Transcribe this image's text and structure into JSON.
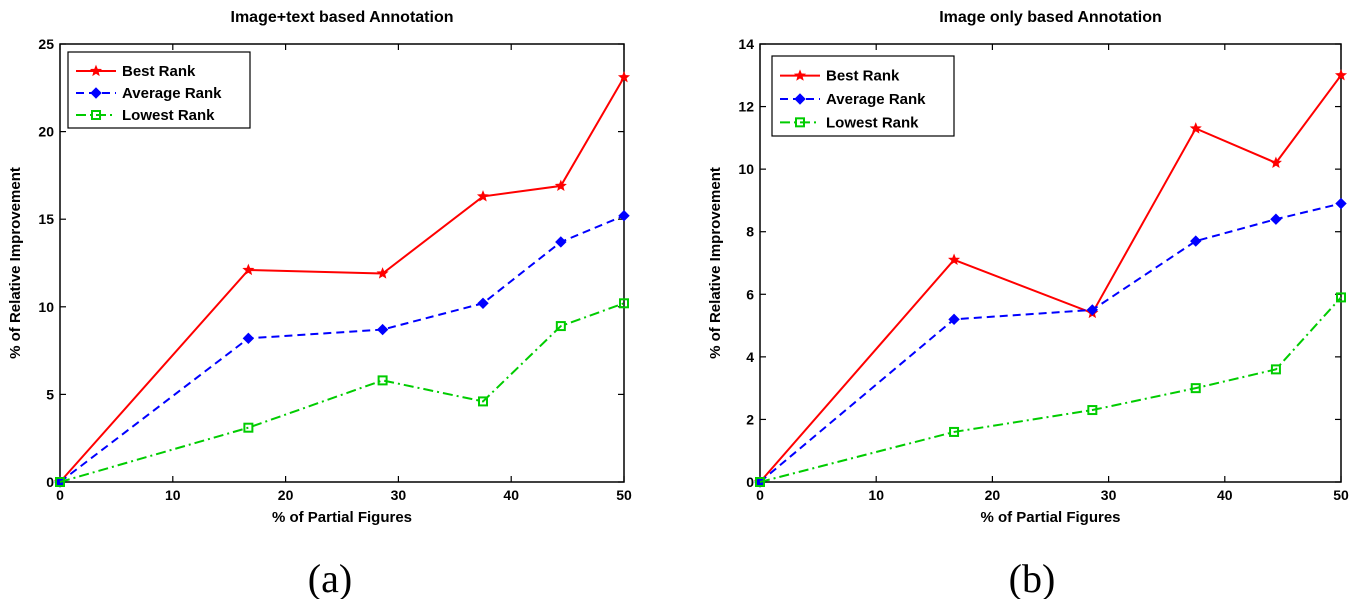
{
  "chart_data": [
    {
      "type": "line",
      "title": "Image+text based Annotation",
      "xlabel": "% of Partial Figures",
      "ylabel": "% of Relative Improvement",
      "caption": "(a)",
      "xlim": [
        0,
        50
      ],
      "ylim": [
        0,
        25
      ],
      "xticks": [
        0,
        10,
        20,
        30,
        40,
        50
      ],
      "yticks": [
        0,
        5,
        10,
        15,
        20,
        25
      ],
      "legend_position": "top-left",
      "grid": false,
      "x": [
        0,
        16.7,
        28.6,
        37.5,
        44.4,
        50
      ],
      "series": [
        {
          "name": "Best Rank",
          "values": [
            0,
            12.1,
            11.9,
            16.3,
            16.9,
            23.1
          ],
          "color": "#ff0000",
          "dash": "solid",
          "marker": "star"
        },
        {
          "name": "Average Rank",
          "values": [
            0,
            8.2,
            8.7,
            10.2,
            13.7,
            15.2
          ],
          "color": "#0000ff",
          "dash": "dashed",
          "marker": "diamond"
        },
        {
          "name": "Lowest Rank",
          "values": [
            0,
            3.1,
            5.8,
            4.6,
            8.9,
            10.2
          ],
          "color": "#00cc00",
          "dash": "dashdot",
          "marker": "square"
        }
      ]
    },
    {
      "type": "line",
      "title": "Image only based Annotation",
      "xlabel": "% of Partial Figures",
      "ylabel": "% of Relative Improvement",
      "caption": "(b)",
      "xlim": [
        0,
        50
      ],
      "ylim": [
        0,
        14
      ],
      "xticks": [
        0,
        10,
        20,
        30,
        40,
        50
      ],
      "yticks": [
        0,
        2,
        4,
        6,
        8,
        10,
        12,
        14
      ],
      "legend_position": "top-left",
      "grid": false,
      "x": [
        0,
        16.7,
        28.6,
        37.5,
        44.4,
        50
      ],
      "series": [
        {
          "name": "Best Rank",
          "values": [
            0,
            7.1,
            5.4,
            11.3,
            10.2,
            13.0
          ],
          "color": "#ff0000",
          "dash": "solid",
          "marker": "star"
        },
        {
          "name": "Average Rank",
          "values": [
            0,
            5.2,
            5.5,
            7.7,
            8.4,
            8.9
          ],
          "color": "#0000ff",
          "dash": "dashed",
          "marker": "diamond"
        },
        {
          "name": "Lowest Rank",
          "values": [
            0,
            1.6,
            2.3,
            3.0,
            3.6,
            5.9
          ],
          "color": "#00cc00",
          "dash": "dashdot",
          "marker": "square"
        }
      ]
    }
  ]
}
